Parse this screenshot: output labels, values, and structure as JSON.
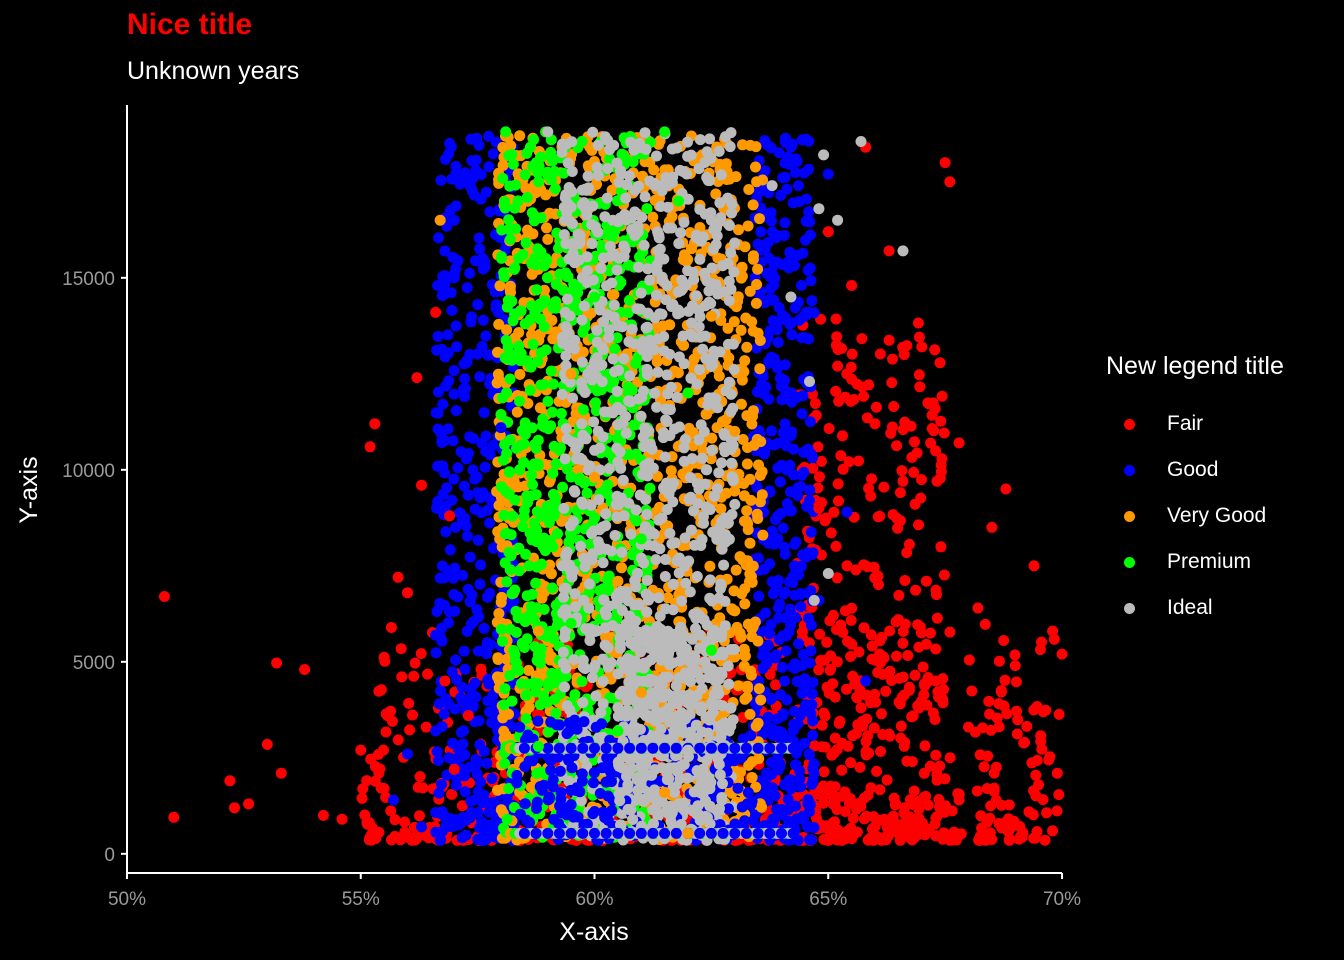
{
  "chart_data": {
    "type": "scatter",
    "title": "Nice title",
    "subtitle": "Unknown years",
    "xlabel": "X-axis",
    "ylabel": "Y-axis",
    "xlim": [
      50,
      70
    ],
    "ylim": [
      -500,
      19500
    ],
    "x_ticks": [
      50,
      55,
      60,
      65,
      70
    ],
    "x_tick_labels": [
      "50%",
      "55%",
      "60%",
      "65%",
      "70%"
    ],
    "y_ticks": [
      0,
      5000,
      10000,
      15000
    ],
    "y_tick_labels": [
      "0",
      "5000",
      "10000",
      "15000"
    ],
    "grid": false,
    "legend_title": "New legend title",
    "legend_position": "right",
    "series": [
      {
        "name": "Fair",
        "color": "#ff0000",
        "points": [
          [
            50.8,
            6700
          ],
          [
            51.0,
            950
          ],
          [
            52.2,
            1900
          ],
          [
            52.3,
            1200
          ],
          [
            52.6,
            1300
          ],
          [
            53.0,
            2850
          ],
          [
            53.2,
            4970
          ],
          [
            53.3,
            2100
          ],
          [
            53.8,
            4800
          ],
          [
            54.2,
            1000
          ],
          [
            54.6,
            900
          ],
          [
            55.0,
            2700
          ],
          [
            55.2,
            10600
          ],
          [
            55.3,
            11200
          ],
          [
            55.5,
            1700
          ],
          [
            55.8,
            7200
          ],
          [
            56.0,
            6800
          ],
          [
            56.2,
            12400
          ],
          [
            56.3,
            9600
          ],
          [
            56.4,
            3300
          ],
          [
            56.6,
            14100
          ],
          [
            56.8,
            4500
          ],
          [
            56.9,
            8800
          ],
          [
            57.0,
            2200
          ],
          [
            57.3,
            3600
          ],
          [
            64.8,
            9000
          ],
          [
            65.0,
            16200
          ],
          [
            65.2,
            12700
          ],
          [
            65.4,
            7500
          ],
          [
            65.5,
            14800
          ],
          [
            65.7,
            3800
          ],
          [
            65.8,
            18400
          ],
          [
            66.0,
            11200
          ],
          [
            66.1,
            5200
          ],
          [
            66.3,
            15700
          ],
          [
            66.5,
            6100
          ],
          [
            66.6,
            9700
          ],
          [
            66.8,
            2400
          ],
          [
            67.0,
            13200
          ],
          [
            67.1,
            7100
          ],
          [
            67.3,
            4500
          ],
          [
            67.5,
            18000
          ],
          [
            67.6,
            17500
          ],
          [
            67.8,
            10700
          ],
          [
            68.0,
            3300
          ],
          [
            68.2,
            6400
          ],
          [
            68.4,
            1700
          ],
          [
            68.5,
            8500
          ],
          [
            68.8,
            9500
          ],
          [
            69.0,
            4900
          ],
          [
            69.2,
            2900
          ],
          [
            69.4,
            7500
          ],
          [
            69.5,
            1800
          ],
          [
            69.6,
            3700
          ],
          [
            69.8,
            5800
          ],
          [
            69.9,
            2100
          ],
          [
            70.0,
            5200
          ],
          [
            69.8,
            600
          ],
          [
            65.3,
            1500
          ],
          [
            66.2,
            900
          ],
          [
            67.8,
            1400
          ],
          [
            68.8,
            700
          ]
        ]
      },
      {
        "name": "Good",
        "color": "#0000ff",
        "points": [
          [
            55.7,
            1400
          ],
          [
            56.0,
            2600
          ],
          [
            56.3,
            700
          ],
          [
            56.6,
            3200
          ],
          [
            56.9,
            6300
          ],
          [
            57.0,
            15100
          ],
          [
            57.2,
            12100
          ],
          [
            57.4,
            17600
          ],
          [
            57.6,
            9300
          ],
          [
            57.7,
            5400
          ],
          [
            57.9,
            14200
          ],
          [
            58.0,
            11100
          ],
          [
            63.8,
            8400
          ],
          [
            64.0,
            13900
          ],
          [
            64.2,
            18400
          ],
          [
            64.4,
            3600
          ],
          [
            64.6,
            1100
          ],
          [
            64.8,
            6600
          ],
          [
            65.0,
            17700
          ],
          [
            65.4,
            8900
          ],
          [
            65.8,
            4500
          ],
          [
            56.9,
            18500
          ],
          [
            57.0,
            16500
          ]
        ]
      },
      {
        "name": "Very Good",
        "color": "#ff9900",
        "points": [
          [
            58.4,
            18700
          ],
          [
            59.0,
            16000
          ],
          [
            59.5,
            12500
          ],
          [
            60.0,
            9800
          ],
          [
            60.5,
            7100
          ],
          [
            61.0,
            4200
          ],
          [
            61.5,
            1600
          ],
          [
            62.0,
            530
          ],
          [
            62.5,
            14000
          ],
          [
            63.0,
            11000
          ],
          [
            63.3,
            17300
          ],
          [
            63.5,
            3400
          ],
          [
            63.6,
            8300
          ],
          [
            58.8,
            5800
          ],
          [
            56.7,
            16500
          ]
        ]
      },
      {
        "name": "Premium",
        "color": "#00ff00",
        "points": [
          [
            58.1,
            18800
          ],
          [
            58.2,
            16000
          ],
          [
            58.3,
            13000
          ],
          [
            58.4,
            10000
          ],
          [
            58.6,
            7500
          ],
          [
            58.8,
            2800
          ],
          [
            59.1,
            11500
          ],
          [
            59.5,
            6000
          ],
          [
            60.0,
            14500
          ],
          [
            60.5,
            3200
          ],
          [
            61.0,
            8200
          ],
          [
            61.5,
            18800
          ],
          [
            62.0,
            12000
          ],
          [
            62.5,
            5300
          ],
          [
            61.8,
            17000
          ]
        ]
      },
      {
        "name": "Ideal",
        "color": "#bbbbbb",
        "points": [
          [
            59.0,
            18800
          ],
          [
            59.5,
            15500
          ],
          [
            60.0,
            12800
          ],
          [
            60.5,
            10200
          ],
          [
            61.0,
            7700
          ],
          [
            61.5,
            5100
          ],
          [
            62.0,
            2700
          ],
          [
            62.5,
            16500
          ],
          [
            63.0,
            9100
          ],
          [
            63.8,
            17400
          ],
          [
            64.2,
            14500
          ],
          [
            64.6,
            12300
          ],
          [
            64.8,
            16800
          ],
          [
            65.2,
            16500
          ],
          [
            65.7,
            18550
          ],
          [
            66.6,
            15700
          ],
          [
            64.9,
            18200
          ],
          [
            64.7,
            6600
          ],
          [
            65.0,
            7300
          ]
        ]
      }
    ]
  }
}
